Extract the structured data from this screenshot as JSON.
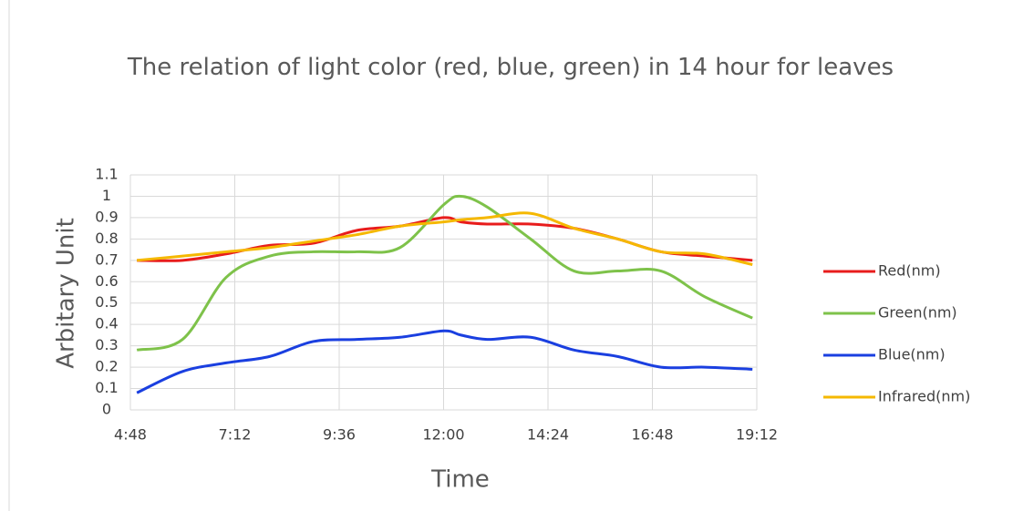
{
  "chart_data": {
    "type": "line",
    "title": "The relation of light color (red, blue, green) in 14 hour for leaves",
    "x_label": "Time",
    "y_label": "Arbitary Unit",
    "x": [
      4.95,
      6,
      7,
      8,
      9,
      10,
      11,
      12,
      12.4,
      13,
      14,
      15,
      16,
      17,
      18,
      19.1
    ],
    "series": [
      {
        "name": "Red(nm)",
        "color": "#e81c1c",
        "values": [
          0.7,
          0.7,
          0.73,
          0.77,
          0.78,
          0.84,
          0.86,
          0.9,
          0.88,
          0.87,
          0.87,
          0.85,
          0.8,
          0.74,
          0.72,
          0.7
        ]
      },
      {
        "name": "Green(nm)",
        "color": "#7ec24a",
        "values": [
          0.28,
          0.33,
          0.62,
          0.72,
          0.74,
          0.74,
          0.76,
          0.96,
          1.0,
          0.95,
          0.8,
          0.65,
          0.65,
          0.65,
          0.53,
          0.43
        ]
      },
      {
        "name": "Blue(nm)",
        "color": "#1a3fe0",
        "values": [
          0.08,
          0.18,
          0.22,
          0.25,
          0.32,
          0.33,
          0.34,
          0.37,
          0.35,
          0.33,
          0.34,
          0.28,
          0.25,
          0.2,
          0.2,
          0.19
        ]
      },
      {
        "name": "Infrared(nm)",
        "color": "#f5b800",
        "values": [
          0.7,
          0.72,
          0.74,
          0.76,
          0.79,
          0.82,
          0.86,
          0.88,
          0.89,
          0.9,
          0.92,
          0.85,
          0.8,
          0.74,
          0.73,
          0.68
        ]
      }
    ],
    "xlim": [
      4.8,
      19.2
    ],
    "xticks": [
      {
        "value": 4.8,
        "label": "4:48"
      },
      {
        "value": 7.2,
        "label": "7:12"
      },
      {
        "value": 9.6,
        "label": "9:36"
      },
      {
        "value": 12,
        "label": "12:00"
      },
      {
        "value": 14.4,
        "label": "14:24"
      },
      {
        "value": 16.8,
        "label": "16:48"
      },
      {
        "value": 19.2,
        "label": "19:12"
      }
    ],
    "ylim": [
      0,
      1.1
    ],
    "yticks": [
      0,
      0.1,
      0.2,
      0.3,
      0.4,
      0.5,
      0.6,
      0.7,
      0.8,
      0.9,
      1,
      1.1
    ],
    "grid": true,
    "legend": "right"
  }
}
